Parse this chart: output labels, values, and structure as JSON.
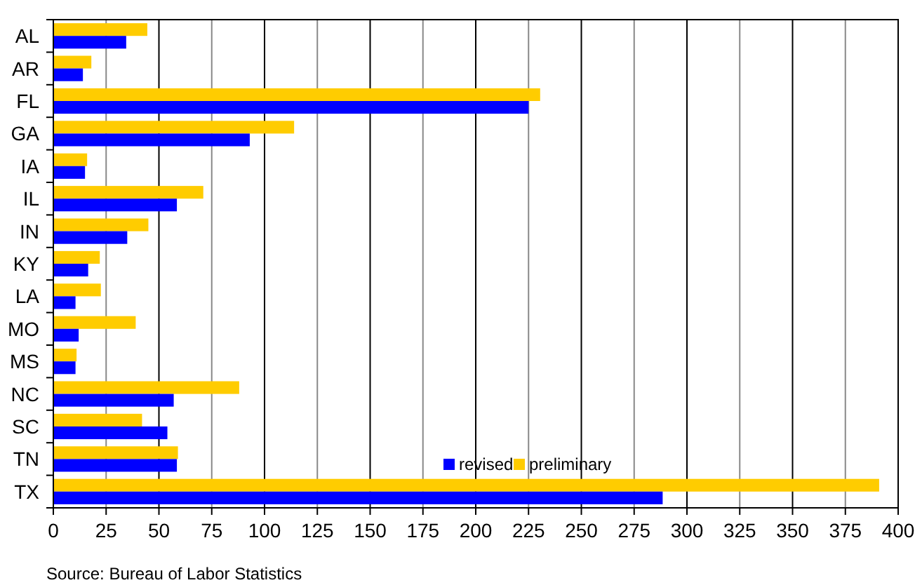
{
  "chart_data": {
    "type": "bar",
    "orientation": "horizontal",
    "categories": [
      "AL",
      "AR",
      "FL",
      "GA",
      "IA",
      "IL",
      "IN",
      "KY",
      "LA",
      "MO",
      "MS",
      "NC",
      "SC",
      "TN",
      "TX"
    ],
    "series": [
      {
        "name": "preliminary",
        "color": "#ffcc00",
        "values": [
          44.5,
          18,
          230.5,
          114,
          16,
          71,
          45,
          22,
          22.5,
          39,
          11,
          88,
          42,
          59,
          391
        ]
      },
      {
        "name": "revised",
        "color": "#0000ff",
        "values": [
          34.5,
          14,
          225,
          93,
          15,
          58.5,
          35,
          16.5,
          10.5,
          12,
          10.5,
          57,
          54,
          58.5,
          288.5
        ]
      }
    ],
    "xlim": [
      0,
      400
    ],
    "xticks": [
      0,
      25,
      50,
      75,
      100,
      125,
      150,
      175,
      200,
      225,
      250,
      275,
      300,
      325,
      350,
      375,
      400
    ],
    "grid": "x",
    "legend": "bottom right",
    "annotations": [
      "Source: Bureau of Labor Statistics"
    ]
  }
}
